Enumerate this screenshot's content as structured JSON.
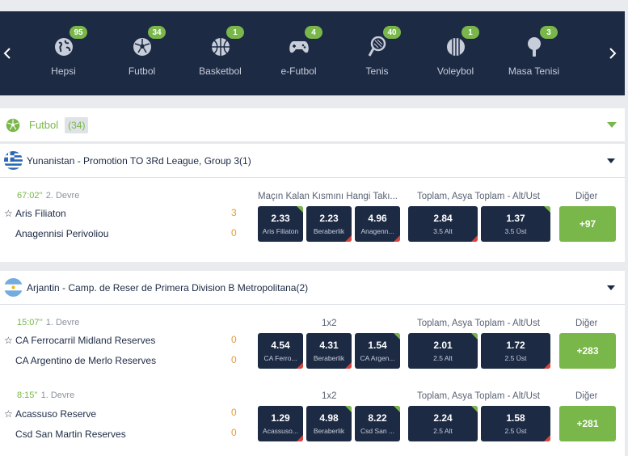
{
  "sports_nav": {
    "prev_icon": "chevron-left-icon",
    "next_icon": "chevron-right-icon",
    "items": [
      {
        "label": "Hepsi",
        "count": "95",
        "icon": "globe-icon"
      },
      {
        "label": "Futbol",
        "count": "34",
        "icon": "soccer-ball-icon"
      },
      {
        "label": "Basketbol",
        "count": "1",
        "icon": "basketball-icon"
      },
      {
        "label": "e-Futbol",
        "count": "4",
        "icon": "gamepad-icon"
      },
      {
        "label": "Tenis",
        "count": "40",
        "icon": "tennis-racket-icon"
      },
      {
        "label": "Voleybol",
        "count": "1",
        "icon": "volleyball-icon"
      },
      {
        "label": "Masa Tenisi",
        "count": "3",
        "icon": "table-tennis-icon"
      }
    ]
  },
  "section": {
    "title": "Futbol",
    "count": "(34)"
  },
  "leagues": [
    {
      "name": "Yunanistan - Promotion TO 3Rd League, Group 3(1)",
      "flag": "greece-flag",
      "matches": [
        {
          "time": "67:02''",
          "period": "2. Devre",
          "home": "Aris Filiaton",
          "away": "Anagennisi Perivoliou",
          "home_score": "3",
          "away_score": "0",
          "market1": "Maçın Kalan Kısmını Hangi Takı...",
          "market2": "Toplam, Asya Toplam - Alt/Üst",
          "more_label": "Diğer",
          "odds1": [
            {
              "value": "2.33",
              "name": "Aris Filiaton"
            },
            {
              "value": "2.23",
              "name": "Beraberlik"
            },
            {
              "value": "4.96",
              "name": "Anagenn..."
            }
          ],
          "odds2": [
            {
              "value": "2.84",
              "name": "3.5 Alt"
            },
            {
              "value": "1.37",
              "name": "3.5 Üst"
            }
          ],
          "more": "+97"
        }
      ]
    },
    {
      "name": "Arjantin - Camp. de Reser de Primera Division B Metropolitana(2)",
      "flag": "argentina-flag",
      "matches": [
        {
          "time": "15:07''",
          "period": "1. Devre",
          "home": "CA Ferrocarril Midland Reserves",
          "away": "CA Argentino de Merlo Reserves",
          "home_score": "0",
          "away_score": "0",
          "market1": "1x2",
          "market2": "Toplam, Asya Toplam - Alt/Üst",
          "more_label": "Diğer",
          "odds1": [
            {
              "value": "4.54",
              "name": "CA Ferro..."
            },
            {
              "value": "4.31",
              "name": "Beraberlik"
            },
            {
              "value": "1.54",
              "name": "CA Argen..."
            }
          ],
          "odds2": [
            {
              "value": "2.01",
              "name": "2.5 Alt"
            },
            {
              "value": "1.72",
              "name": "2.5 Üst"
            }
          ],
          "more": "+283"
        },
        {
          "time": "8:15''",
          "period": "1. Devre",
          "home": "Acassuso Reserve",
          "away": "Csd San Martin Reserves",
          "home_score": "0",
          "away_score": "0",
          "market1": "1x2",
          "market2": "Toplam, Asya Toplam - Alt/Üst",
          "more_label": "Diğer",
          "odds1": [
            {
              "value": "1.29",
              "name": "Acassuso..."
            },
            {
              "value": "4.98",
              "name": "Beraberlik"
            },
            {
              "value": "8.22",
              "name": "Csd San ..."
            }
          ],
          "odds2": [
            {
              "value": "2.24",
              "name": "2.5 Alt"
            },
            {
              "value": "1.58",
              "name": "2.5 Üst"
            }
          ],
          "more": "+281"
        }
      ]
    }
  ],
  "colors": {
    "navy": "#1d2a44",
    "green": "#79b74a",
    "score": "#e39b3a",
    "down": "#d9443c"
  }
}
